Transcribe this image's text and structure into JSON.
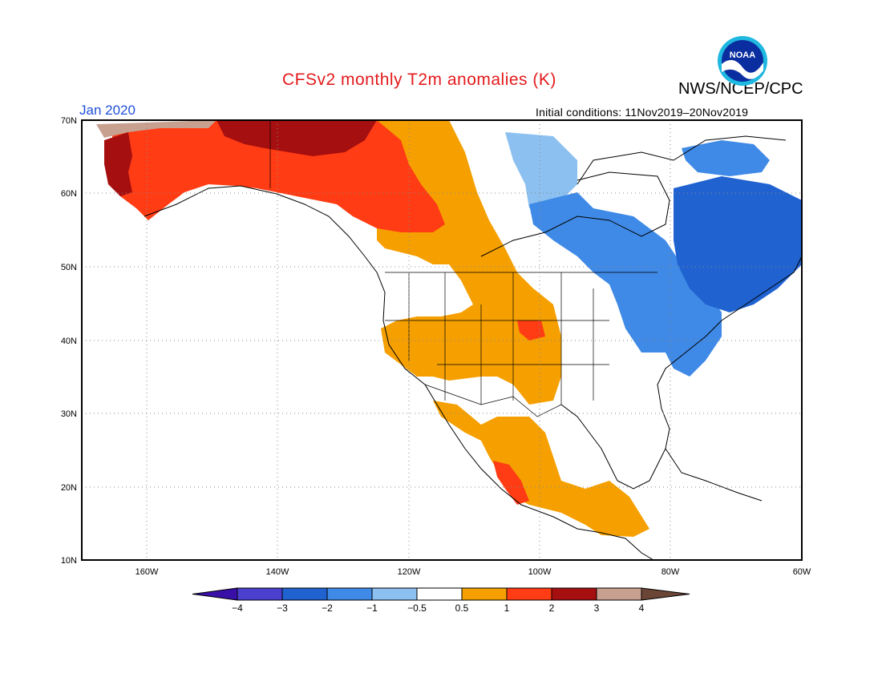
{
  "header": {
    "title": "CFSv2 monthly T2m anomalies (K)",
    "organization": "NWS/NCEP/CPC",
    "month_label": "Jan 2020",
    "initial_conditions": "Initial conditions: 11Nov2019–20Nov2019",
    "logo_text": "NOAA"
  },
  "map": {
    "lon_range": [
      -172,
      -60
    ],
    "lat_range": [
      10,
      70
    ],
    "lat_labels": [
      "70N",
      "60N",
      "50N",
      "40N",
      "30N",
      "20N",
      "10N"
    ],
    "lon_labels": [
      "160W",
      "140W",
      "120W",
      "100W",
      "80W",
      "60W"
    ],
    "anomaly_regions": [
      {
        "name": "alaska-warm",
        "level": "+1 to +2"
      },
      {
        "name": "northwest-canada-warm",
        "level": "+2 to +3"
      },
      {
        "name": "western-us-warm",
        "level": "+0.5 to +1"
      },
      {
        "name": "mexico-warm",
        "level": "+0.5 to +1"
      },
      {
        "name": "eastern-canada-cold",
        "level": "-1 to -3"
      },
      {
        "name": "northeast-us-cold",
        "level": "-1 to -2"
      }
    ]
  },
  "colorbar": {
    "labels": [
      "−4",
      "−3",
      "−2",
      "−1",
      "−0.5",
      "0.5",
      "1",
      "2",
      "3",
      "4"
    ],
    "colors": [
      "#3a0fa8",
      "#4a3fcf",
      "#1f62d0",
      "#3f8ae6",
      "#8cc0f0",
      "#ffffff",
      "#f5a000",
      "#ff3c14",
      "#a50f0f",
      "#c8a090",
      "#6b4636"
    ]
  }
}
